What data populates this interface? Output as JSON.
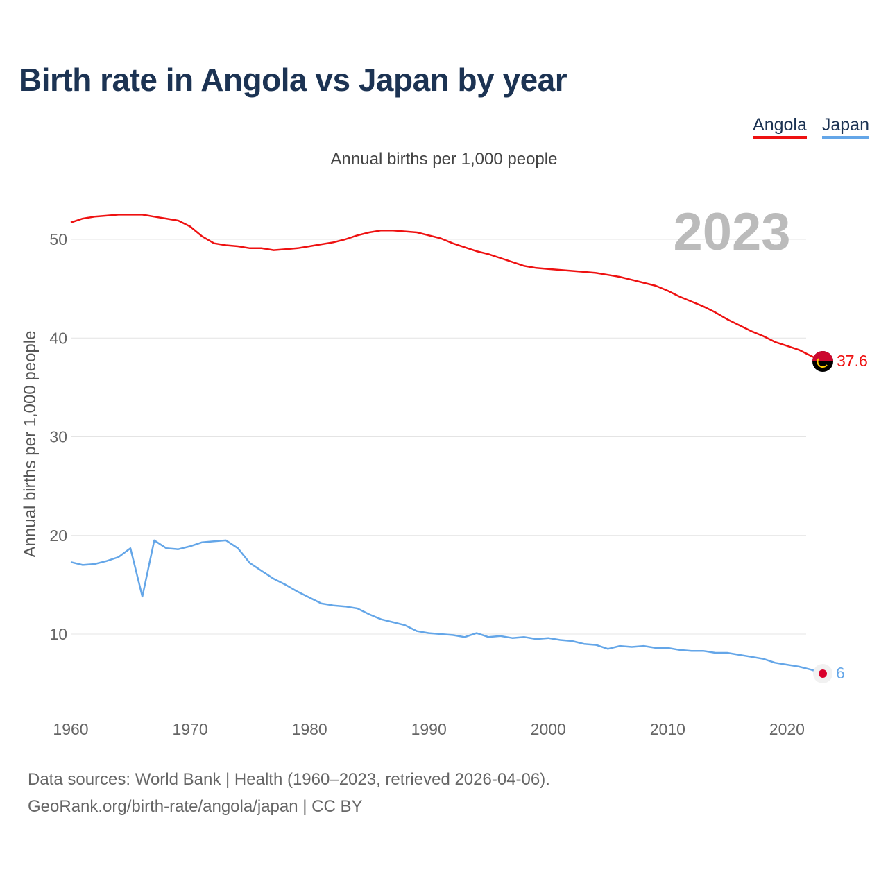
{
  "title": "Birth rate in Angola vs Japan by year",
  "subtitle": "Annual births per 1,000 people",
  "legend": [
    {
      "label": "Angola",
      "color": "#ee1111"
    },
    {
      "label": "Japan",
      "color": "#64a6e8"
    }
  ],
  "year_label": "2023",
  "footer": {
    "line1": "Data sources: World Bank | Health (1960–2023, retrieved 2026-04-06).",
    "line2": "GeoRank.org/birth-rate/angola/japan | CC BY"
  },
  "end_labels": {
    "angola": "37.6",
    "japan": "6"
  },
  "chart_data": {
    "type": "line",
    "title": "Birth rate in Angola vs Japan by year",
    "xlabel": "",
    "ylabel": "Annual births per 1,000 people",
    "xlim": [
      1960,
      2023
    ],
    "ylim": [
      3,
      55
    ],
    "x_ticks": [
      1960,
      1970,
      1980,
      1990,
      2000,
      2010,
      2020
    ],
    "y_ticks": [
      10,
      20,
      30,
      40,
      50
    ],
    "grid": true,
    "legend_position": "top-right",
    "x": [
      1960,
      1961,
      1962,
      1963,
      1964,
      1965,
      1966,
      1967,
      1968,
      1969,
      1970,
      1971,
      1972,
      1973,
      1974,
      1975,
      1976,
      1977,
      1978,
      1979,
      1980,
      1981,
      1982,
      1983,
      1984,
      1985,
      1986,
      1987,
      1988,
      1989,
      1990,
      1991,
      1992,
      1993,
      1994,
      1995,
      1996,
      1997,
      1998,
      1999,
      2000,
      2001,
      2002,
      2003,
      2004,
      2005,
      2006,
      2007,
      2008,
      2009,
      2010,
      2011,
      2012,
      2013,
      2014,
      2015,
      2016,
      2017,
      2018,
      2019,
      2020,
      2021,
      2022,
      2023
    ],
    "series": [
      {
        "name": "Angola",
        "color": "#ee1111",
        "values": [
          51.7,
          52.1,
          52.3,
          52.4,
          52.5,
          52.5,
          52.5,
          52.3,
          52.1,
          51.9,
          51.3,
          50.3,
          49.6,
          49.4,
          49.3,
          49.1,
          49.1,
          48.9,
          49.0,
          49.1,
          49.3,
          49.5,
          49.7,
          50.0,
          50.4,
          50.7,
          50.9,
          50.9,
          50.8,
          50.7,
          50.4,
          50.1,
          49.6,
          49.2,
          48.8,
          48.5,
          48.1,
          47.7,
          47.3,
          47.1,
          47.0,
          46.9,
          46.8,
          46.7,
          46.6,
          46.4,
          46.2,
          45.9,
          45.6,
          45.3,
          44.8,
          44.2,
          43.7,
          43.2,
          42.6,
          41.9,
          41.3,
          40.7,
          40.2,
          39.6,
          39.2,
          38.8,
          38.2,
          37.6
        ]
      },
      {
        "name": "Japan",
        "color": "#64a6e8",
        "values": [
          17.3,
          17.0,
          17.1,
          17.4,
          17.8,
          18.7,
          13.8,
          19.5,
          18.7,
          18.6,
          18.9,
          19.3,
          19.4,
          19.5,
          18.7,
          17.2,
          16.4,
          15.6,
          15.0,
          14.3,
          13.7,
          13.1,
          12.9,
          12.8,
          12.6,
          12.0,
          11.5,
          11.2,
          10.9,
          10.3,
          10.1,
          10.0,
          9.9,
          9.7,
          10.1,
          9.7,
          9.8,
          9.6,
          9.7,
          9.5,
          9.6,
          9.4,
          9.3,
          9.0,
          8.9,
          8.5,
          8.8,
          8.7,
          8.8,
          8.6,
          8.6,
          8.4,
          8.3,
          8.3,
          8.1,
          8.1,
          7.9,
          7.7,
          7.5,
          7.1,
          6.9,
          6.7,
          6.4,
          6.0
        ]
      }
    ]
  }
}
